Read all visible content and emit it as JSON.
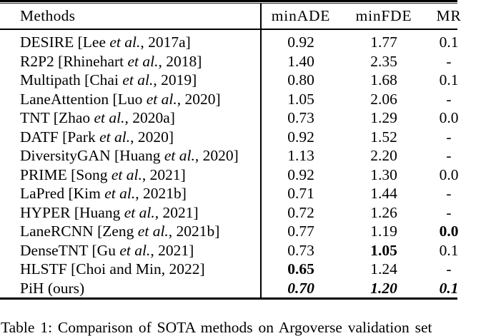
{
  "colors": {
    "text": "#000000",
    "background": "#ffffff",
    "rule": "#000000"
  },
  "table": {
    "header": {
      "methods": "Methods",
      "minade": "minADE",
      "minfde": "minFDE",
      "mr": "MR"
    },
    "rows": [
      {
        "pre": "DESIRE [Lee ",
        "etal": "et al.",
        "post": ", 2017a]",
        "ade": "0.92",
        "fde": "1.77",
        "mr": "0.1"
      },
      {
        "pre": "R2P2 [Rhinehart ",
        "etal": "et al.",
        "post": ", 2018]",
        "ade": "1.40",
        "fde": "2.35",
        "mr": "-"
      },
      {
        "pre": "Multipath [Chai ",
        "etal": "et al.",
        "post": ", 2019]",
        "ade": "0.80",
        "fde": "1.68",
        "mr": "0.1"
      },
      {
        "pre": "LaneAttention [Luo ",
        "etal": "et al.",
        "post": ", 2020]",
        "ade": "1.05",
        "fde": "2.06",
        "mr": "-"
      },
      {
        "pre": "TNT [Zhao ",
        "etal": "et al.",
        "post": ", 2020a]",
        "ade": "0.73",
        "fde": "1.29",
        "mr": "0.0"
      },
      {
        "pre": "DATF [Park ",
        "etal": "et al.",
        "post": ", 2020]",
        "ade": "0.92",
        "fde": "1.52",
        "mr": "-"
      },
      {
        "pre": "DiversityGAN [Huang ",
        "etal": "et al.",
        "post": ", 2020]",
        "ade": "1.13",
        "fde": "2.20",
        "mr": "-"
      },
      {
        "pre": "PRIME [Song ",
        "etal": "et al.",
        "post": ", 2021]",
        "ade": "0.92",
        "fde": "1.30",
        "mr": "0.0"
      },
      {
        "pre": "LaPred [Kim ",
        "etal": "et al.",
        "post": ", 2021b]",
        "ade": "0.71",
        "fde": "1.44",
        "mr": "-"
      },
      {
        "pre": "HYPER [Huang ",
        "etal": "et al.",
        "post": ", 2021]",
        "ade": "0.72",
        "fde": "1.26",
        "mr": "-"
      },
      {
        "pre": "LaneRCNN [Zeng ",
        "etal": "et al.",
        "post": ", 2021b]",
        "ade": "0.77",
        "fde": "1.19",
        "mr": "0.0"
      },
      {
        "pre": "DenseTNT [Gu ",
        "etal": "et al.",
        "post": ", 2021]",
        "ade": "0.73",
        "fde": "1.05",
        "mr": "0.1"
      },
      {
        "pre": "HLSTF [Choi and Min, 2022]",
        "etal": "",
        "post": "",
        "ade": "0.65",
        "fde": "1.24",
        "mr": "-"
      },
      {
        "pre": "PiH (ours)",
        "etal": "",
        "post": "",
        "ade": "0.70",
        "fde": "1.20",
        "mr": "0.1"
      }
    ]
  },
  "caption": "Table 1: Comparison of SOTA methods on Argoverse validation set"
}
